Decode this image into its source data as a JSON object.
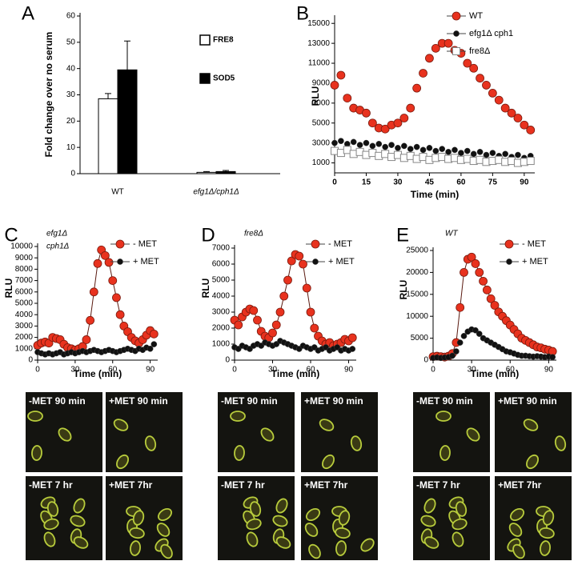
{
  "chart_data": [
    {
      "type": "bar",
      "panel": "A",
      "ylabel": "Fold change over no serum",
      "categories": [
        "WT",
        "efg1Δ/cph1Δ"
      ],
      "series": [
        {
          "name": "FRE8",
          "color": "#ffffff",
          "values": [
            28.5,
            0.5
          ],
          "errors": [
            2,
            0.3
          ]
        },
        {
          "name": "SOD5",
          "color": "#000000",
          "values": [
            39.5,
            0.8
          ],
          "errors": [
            11,
            0.4
          ]
        }
      ],
      "ylim": [
        0,
        60
      ],
      "yticks": [
        0,
        10,
        20,
        30,
        40,
        50,
        60
      ],
      "legend": "upper right"
    },
    {
      "type": "scatter",
      "panel": "B",
      "ylabel": "RLU",
      "xlabel": "Time (min)",
      "x": [
        0,
        3,
        6,
        9,
        12,
        15,
        18,
        21,
        24,
        27,
        30,
        33,
        36,
        39,
        42,
        45,
        48,
        51,
        54,
        57,
        60,
        63,
        66,
        69,
        72,
        75,
        78,
        81,
        84,
        87,
        90,
        93
      ],
      "series": [
        {
          "name": "WT",
          "color": "#e8321e",
          "marker": "circle",
          "values": [
            8800,
            9800,
            7500,
            6500,
            6300,
            6000,
            5000,
            4500,
            4400,
            4800,
            5000,
            5500,
            6500,
            8500,
            10000,
            11500,
            12500,
            13000,
            13000,
            12300,
            12000,
            11000,
            10500,
            9500,
            8800,
            8000,
            7300,
            6500,
            6000,
            5500,
            4800,
            4300
          ]
        },
        {
          "name": "efg1Δ cph1",
          "color": "#111111",
          "marker": "dot",
          "values": [
            3000,
            3200,
            2900,
            3100,
            2800,
            3000,
            2700,
            2900,
            2600,
            2800,
            2500,
            2700,
            2400,
            2600,
            2300,
            2500,
            2200,
            2400,
            2100,
            2300,
            2000,
            2200,
            1900,
            2100,
            1800,
            2000,
            1700,
            1900,
            1600,
            1800,
            1500,
            1700
          ]
        },
        {
          "name": "fre8Δ",
          "color": "#888888",
          "marker": "square-open",
          "values": [
            2200,
            2000,
            2300,
            1900,
            2100,
            1800,
            2000,
            1700,
            1900,
            1600,
            1800,
            1500,
            1700,
            1400,
            1600,
            1300,
            1500,
            1600,
            1400,
            1500,
            1300,
            1400,
            1200,
            1300,
            1100,
            1200,
            1300,
            1100,
            1200,
            1000,
            1100,
            1200
          ]
        }
      ],
      "xlim": [
        0,
        95
      ],
      "xticks": [
        0,
        15,
        30,
        45,
        60,
        75,
        90
      ],
      "ylim": [
        0,
        15500
      ],
      "yticks": [
        1000,
        3000,
        5000,
        7000,
        9000,
        11000,
        13000,
        15000
      ],
      "legend": "upper right"
    },
    {
      "type": "scatter",
      "panel": "C",
      "title": [
        "efg1Δ",
        "cph1Δ"
      ],
      "ylabel": "RLU",
      "xlabel": "Time (min)",
      "x": [
        0,
        3,
        6,
        9,
        12,
        15,
        18,
        21,
        24,
        27,
        30,
        33,
        36,
        39,
        42,
        45,
        48,
        51,
        54,
        57,
        60,
        63,
        66,
        69,
        72,
        75,
        78,
        81,
        84,
        87,
        90,
        93
      ],
      "series": [
        {
          "name": "- MET",
          "color": "#e8321e",
          "marker": "circle",
          "line": true,
          "values": [
            1300,
            1500,
            1600,
            1500,
            2000,
            1900,
            1800,
            1400,
            1100,
            1000,
            900,
            1000,
            1200,
            1800,
            3500,
            6000,
            8500,
            9700,
            9200,
            8600,
            7000,
            5500,
            4000,
            3000,
            2500,
            2000,
            1700,
            1500,
            1800,
            2200,
            2600,
            2300
          ]
        },
        {
          "name": "+ MET",
          "color": "#111111",
          "marker": "dot",
          "values": [
            700,
            600,
            500,
            600,
            500,
            600,
            700,
            500,
            600,
            700,
            600,
            700,
            800,
            700,
            800,
            900,
            800,
            700,
            800,
            900,
            800,
            700,
            800,
            900,
            1000,
            900,
            800,
            1000,
            900,
            1100,
            1000,
            1400
          ]
        }
      ],
      "xlim": [
        0,
        96
      ],
      "xticks": [
        0,
        30,
        60,
        90
      ],
      "ylim": [
        0,
        10000
      ],
      "yticks": [
        0,
        1000,
        2000,
        3000,
        4000,
        5000,
        6000,
        7000,
        8000,
        9000,
        10000
      ],
      "legend": "upper right"
    },
    {
      "type": "scatter",
      "panel": "D",
      "title": [
        "fre8Δ"
      ],
      "ylabel": "RLU",
      "xlabel": "Time (min)",
      "x": [
        0,
        3,
        6,
        9,
        12,
        15,
        18,
        21,
        24,
        27,
        30,
        33,
        36,
        39,
        42,
        45,
        48,
        51,
        54,
        57,
        60,
        63,
        66,
        69,
        72,
        75,
        78,
        81,
        84,
        87,
        90,
        93
      ],
      "series": [
        {
          "name": "- MET",
          "color": "#e8321e",
          "marker": "circle",
          "line": true,
          "values": [
            2500,
            2200,
            2700,
            3000,
            3200,
            3100,
            2500,
            1800,
            1500,
            1400,
            1700,
            2200,
            3000,
            4000,
            5000,
            6200,
            6600,
            6500,
            6000,
            4500,
            3000,
            2000,
            1500,
            1200,
            1000,
            1100,
            900,
            1000,
            1100,
            1300,
            1200,
            1400
          ]
        },
        {
          "name": "+ MET",
          "color": "#111111",
          "marker": "dot",
          "values": [
            800,
            700,
            900,
            800,
            700,
            900,
            1000,
            900,
            1100,
            1000,
            900,
            1000,
            1200,
            1100,
            1000,
            900,
            800,
            700,
            900,
            800,
            700,
            800,
            600,
            700,
            800,
            600,
            700,
            800,
            600,
            700,
            600,
            700
          ]
        }
      ],
      "xlim": [
        0,
        96
      ],
      "xticks": [
        0,
        30,
        60,
        90
      ],
      "ylim": [
        0,
        7000
      ],
      "yticks": [
        0,
        1000,
        2000,
        3000,
        4000,
        5000,
        6000,
        7000
      ],
      "legend": "upper right"
    },
    {
      "type": "scatter",
      "panel": "E",
      "title": [
        "WT"
      ],
      "ylabel": "RLU",
      "xlabel": "Time (min)",
      "x": [
        0,
        3,
        6,
        9,
        12,
        15,
        18,
        21,
        24,
        27,
        30,
        33,
        36,
        39,
        42,
        45,
        48,
        51,
        54,
        57,
        60,
        63,
        66,
        69,
        72,
        75,
        78,
        81,
        84,
        87,
        90,
        93
      ],
      "series": [
        {
          "name": "- MET",
          "color": "#e8321e",
          "marker": "circle",
          "line": true,
          "values": [
            800,
            900,
            800,
            700,
            900,
            1500,
            4000,
            12000,
            20000,
            23000,
            23500,
            22000,
            20000,
            18000,
            16000,
            14000,
            12500,
            11000,
            10000,
            9000,
            8000,
            7000,
            6000,
            5000,
            4500,
            4000,
            3500,
            3000,
            2800,
            2500,
            2300,
            2000
          ]
        },
        {
          "name": "+ MET",
          "color": "#111111",
          "marker": "dot",
          "values": [
            500,
            600,
            500,
            600,
            700,
            1000,
            2000,
            4000,
            5500,
            6500,
            7000,
            6800,
            6000,
            5000,
            4500,
            4000,
            3500,
            3000,
            2500,
            2000,
            1800,
            1500,
            1200,
            1000,
            1000,
            900,
            800,
            900,
            800,
            700,
            800,
            700
          ]
        }
      ],
      "xlim": [
        0,
        96
      ],
      "xticks": [
        0,
        30,
        60,
        90
      ],
      "ylim": [
        0,
        25000
      ],
      "yticks": [
        0,
        5000,
        10000,
        15000,
        20000,
        25000
      ],
      "legend": "upper right"
    }
  ],
  "micrographs": [
    [
      "-MET 90 min",
      "+MET 90 min",
      "-MET 7 hr",
      "+MET 7hr"
    ],
    [
      "-MET 90 min",
      "+MET 90 min",
      "-MET 7 hr",
      "+MET 7hr"
    ],
    [
      "-MET 90 min",
      "+MET 90 min",
      "-MET 7 hr",
      "+MET 7hr"
    ]
  ]
}
